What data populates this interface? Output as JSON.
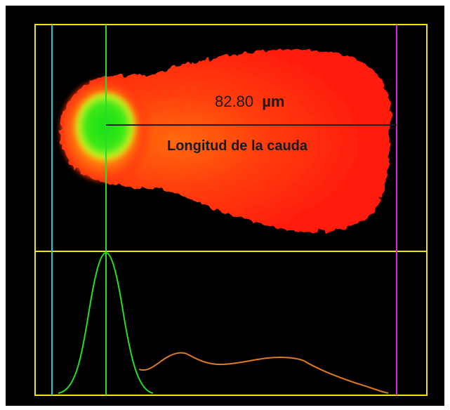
{
  "measurement": {
    "value": "82.80",
    "unit": "µm",
    "label": "Longitud de la cauda"
  },
  "colors": {
    "background": "#000000",
    "frame_border": "#ffffff",
    "box_lines": "#f2e21a",
    "head_marker": "#2fd82f",
    "start_marker": "#20c8d8",
    "end_marker": "#d02ad8",
    "head_profile": "#22e022",
    "tail_profile": "#e07a20",
    "comet_tail": "#ff2a10",
    "comet_head": "#20e020",
    "measure_line": "#1a1a1a"
  }
}
